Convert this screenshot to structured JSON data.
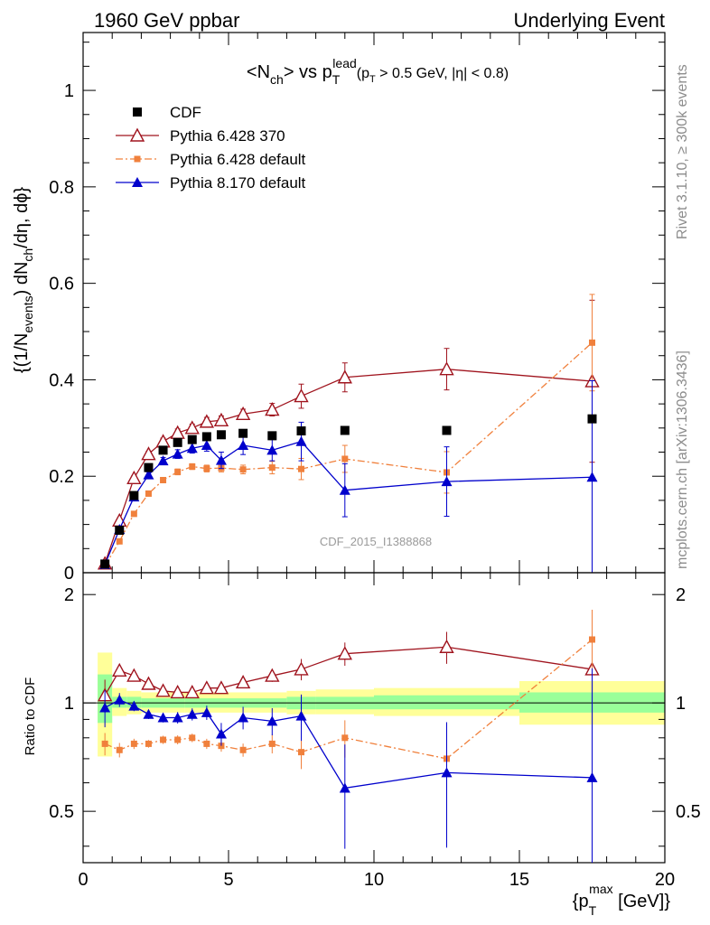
{
  "header": {
    "left": "1960 GeV ppbar",
    "right": "Underlying Event"
  },
  "side_labels": {
    "rivet": "Rivet 3.1.10, ≥ 300k events",
    "mcplots": "mcplots.cern.ch [arXiv:1306.3436]"
  },
  "watermark": "CDF_2015_I1388868",
  "chart_data": {
    "type": "scatter",
    "title": {
      "main": "<N",
      "main_sub": "ch",
      "vs": "> vs p",
      "sub_T": "T",
      "sup_lead": "lead",
      "cut": "(p",
      "cut_sub": "T",
      "cut_rest": " > 0.5 GeV, |η| < 0.8)"
    },
    "ylabel": {
      "a": "{(1/N",
      "a_sub": "events",
      "b": ") dN",
      "b_sub": "ch",
      "c": "/dη, dϕ}"
    },
    "ylabel_ratio": "Ratio to CDF",
    "xlabel": {
      "a": "{p",
      "a_sub": "T",
      "a_sup": "max",
      "b": " [GeV]}"
    },
    "xlim": [
      0,
      20
    ],
    "ylim": [
      0,
      1.12
    ],
    "ratio_ylim": [
      0.36,
      2.3
    ],
    "xticks": [
      "0",
      "5",
      "10",
      "15",
      "20"
    ],
    "yticks": [
      "0",
      "0.2",
      "0.4",
      "0.6",
      "0.8",
      "1"
    ],
    "ratio_yticks": [
      "0.5",
      "1",
      "2"
    ],
    "legend_position": "top-left",
    "x": [
      0.75,
      1.25,
      1.75,
      2.25,
      2.75,
      3.25,
      3.75,
      4.25,
      4.75,
      5.5,
      6.5,
      7.5,
      9.0,
      12.5,
      17.5
    ],
    "series": [
      {
        "name": "CDF",
        "color": "#000000",
        "marker": "square",
        "values": [
          0.018,
          0.088,
          0.16,
          0.218,
          0.254,
          0.27,
          0.276,
          0.282,
          0.286,
          0.289,
          0.284,
          0.294,
          0.295,
          0.295,
          0.319
        ]
      },
      {
        "name": "Pythia 6.428 370",
        "color": "#a0141e",
        "marker": "open-triangle",
        "line": "solid",
        "values": [
          0.019,
          0.108,
          0.196,
          0.246,
          0.272,
          0.29,
          0.3,
          0.313,
          0.316,
          0.329,
          0.338,
          0.366,
          0.405,
          0.422,
          0.397
        ],
        "errors": [
          0.002,
          0.004,
          0.005,
          0.006,
          0.007,
          0.008,
          0.008,
          0.009,
          0.009,
          0.01,
          0.013,
          0.025,
          0.03,
          0.043,
          0.168
        ],
        "ratio": [
          1.05,
          1.23,
          1.19,
          1.13,
          1.08,
          1.07,
          1.07,
          1.1,
          1.1,
          1.14,
          1.19,
          1.24,
          1.37,
          1.43,
          1.24
        ]
      },
      {
        "name": "Pythia 6.428 default",
        "color": "#f0803c",
        "marker": "square",
        "line": "dashdot",
        "values": [
          0.014,
          0.065,
          0.122,
          0.164,
          0.192,
          0.209,
          0.22,
          0.216,
          0.217,
          0.214,
          0.218,
          0.215,
          0.236,
          0.208,
          0.477
        ],
        "errors": [
          0.001,
          0.003,
          0.004,
          0.004,
          0.005,
          0.006,
          0.006,
          0.007,
          0.008,
          0.009,
          0.013,
          0.022,
          0.028,
          0.043,
          0.1
        ],
        "ratio": [
          0.77,
          0.74,
          0.77,
          0.77,
          0.79,
          0.79,
          0.8,
          0.77,
          0.76,
          0.74,
          0.77,
          0.73,
          0.8,
          0.7,
          1.5
        ]
      },
      {
        "name": "Pythia 8.170 default",
        "color": "#0000cc",
        "marker": "triangle",
        "line": "solid",
        "values": [
          0.017,
          0.09,
          0.157,
          0.203,
          0.232,
          0.246,
          0.258,
          0.264,
          0.233,
          0.264,
          0.254,
          0.272,
          0.171,
          0.189,
          0.198
        ],
        "errors": [
          0.002,
          0.004,
          0.005,
          0.006,
          0.007,
          0.009,
          0.01,
          0.012,
          0.017,
          0.019,
          0.022,
          0.04,
          0.055,
          0.072,
          0.2
        ],
        "ratio": [
          0.97,
          1.02,
          0.98,
          0.93,
          0.91,
          0.91,
          0.93,
          0.94,
          0.82,
          0.91,
          0.89,
          0.92,
          0.58,
          0.64,
          0.62
        ]
      }
    ],
    "ratio_bands": [
      {
        "x": [
          0.5,
          1.0
        ],
        "inner": [
          0.88,
          1.2
        ],
        "outer": [
          0.71,
          1.38
        ]
      },
      {
        "x": [
          1.0,
          1.5
        ],
        "inner": [
          0.97,
          1.04
        ],
        "outer": [
          0.92,
          1.1
        ]
      },
      {
        "x": [
          1.5,
          2.0
        ],
        "inner": [
          0.97,
          1.04
        ],
        "outer": [
          0.93,
          1.08
        ]
      },
      {
        "x": [
          2.0,
          3.5
        ],
        "inner": [
          0.97,
          1.03
        ],
        "outer": [
          0.94,
          1.07
        ]
      },
      {
        "x": [
          3.5,
          5.0
        ],
        "inner": [
          0.97,
          1.03
        ],
        "outer": [
          0.94,
          1.07
        ]
      },
      {
        "x": [
          5.0,
          7.0
        ],
        "inner": [
          0.97,
          1.03
        ],
        "outer": [
          0.94,
          1.07
        ]
      },
      {
        "x": [
          7.0,
          8.0
        ],
        "inner": [
          0.96,
          1.04
        ],
        "outer": [
          0.93,
          1.08
        ]
      },
      {
        "x": [
          8.0,
          10.0
        ],
        "inner": [
          0.96,
          1.04
        ],
        "outer": [
          0.93,
          1.09
        ]
      },
      {
        "x": [
          10.0,
          15.0
        ],
        "inner": [
          0.96,
          1.05
        ],
        "outer": [
          0.92,
          1.1
        ]
      },
      {
        "x": [
          15.0,
          20.0
        ],
        "inner": [
          0.94,
          1.07
        ],
        "outer": [
          0.87,
          1.15
        ]
      }
    ]
  }
}
